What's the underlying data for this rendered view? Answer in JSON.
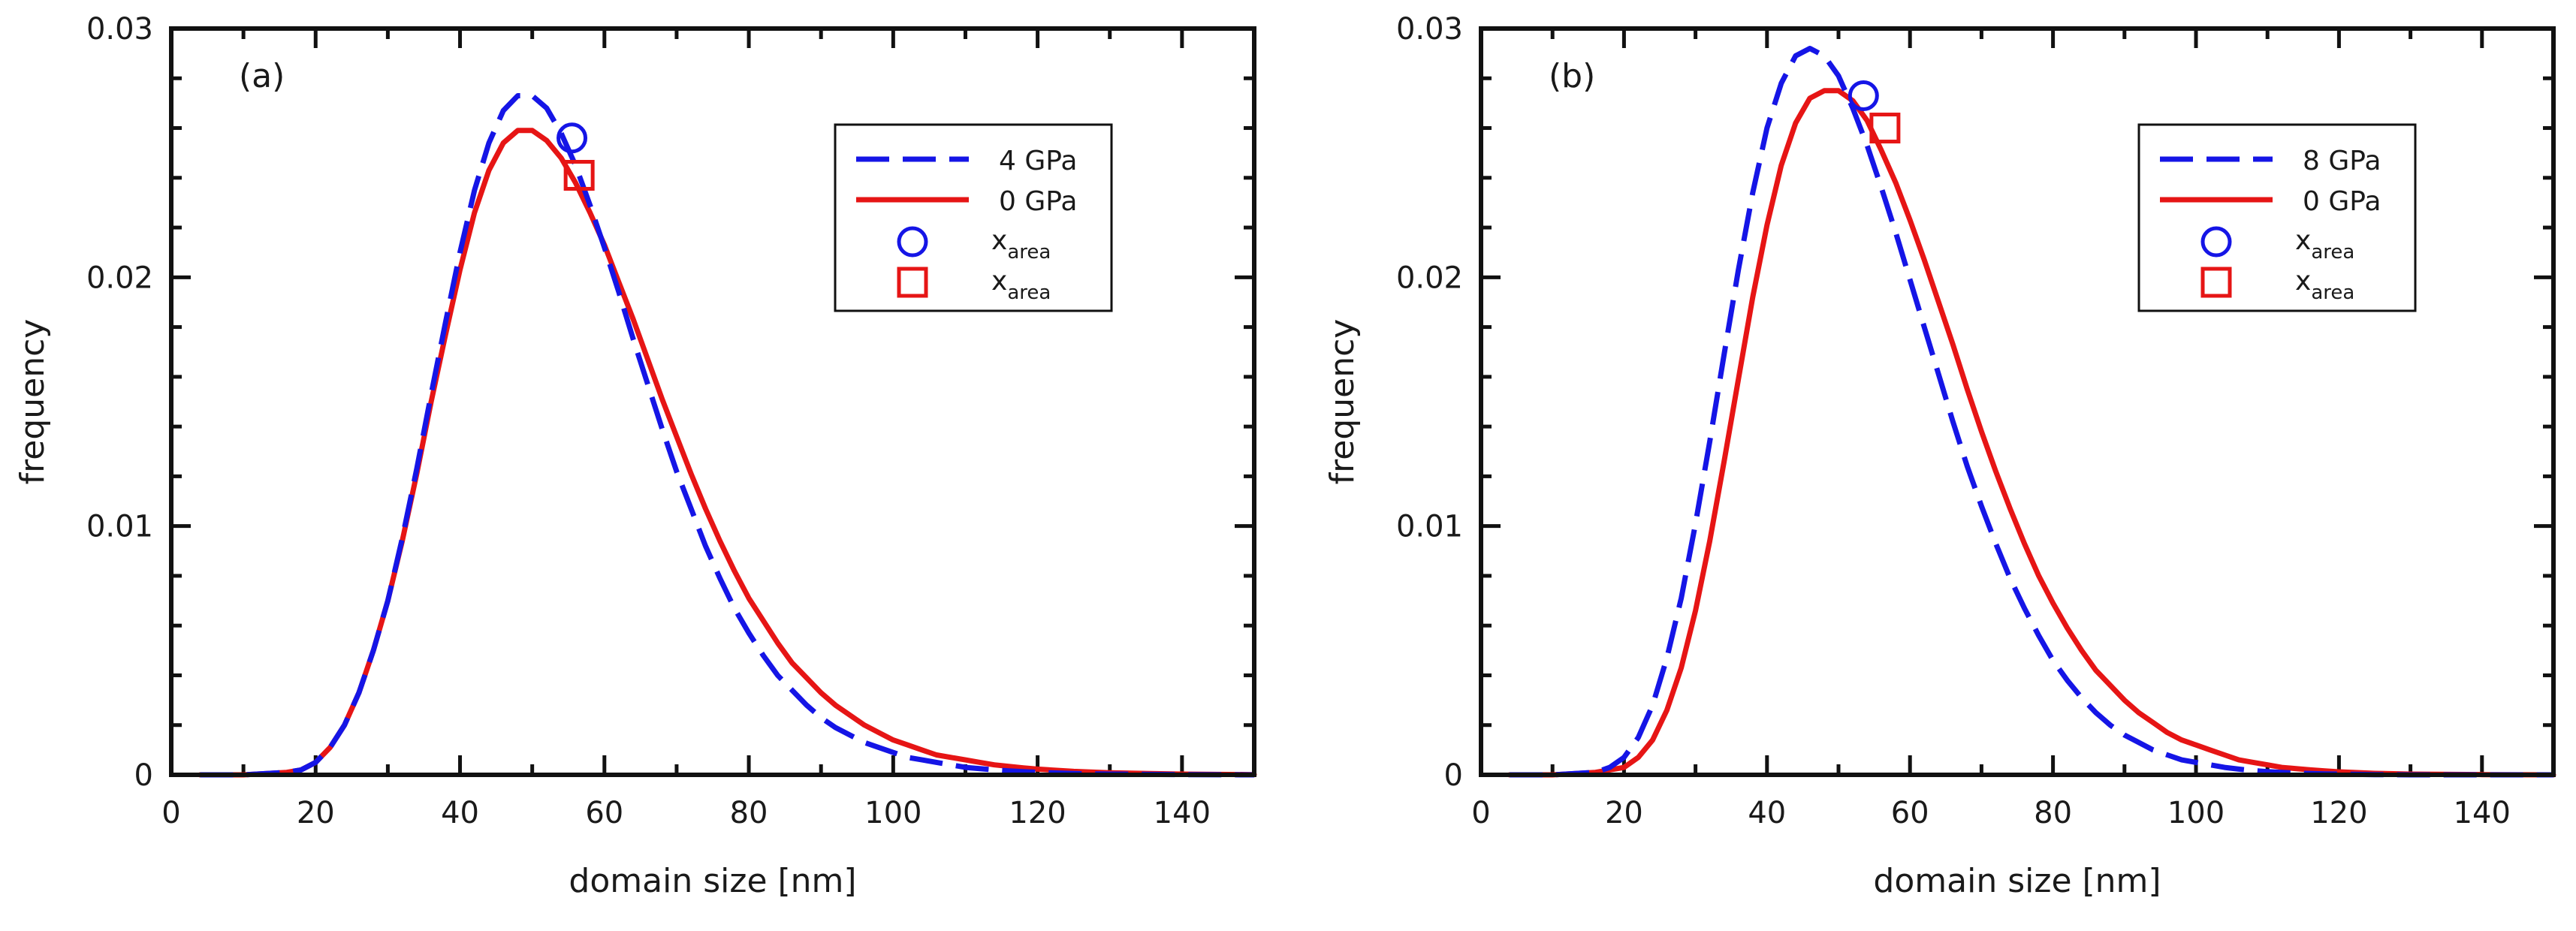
{
  "chart_data": [
    {
      "panel_label": "(a)",
      "type": "line",
      "xlabel": "domain size [nm]",
      "ylabel": "frequency",
      "xlim": [
        0,
        150
      ],
      "ylim": [
        0,
        0.03
      ],
      "xticks": [
        0,
        20,
        40,
        60,
        80,
        100,
        120,
        140
      ],
      "xtick_labels": [
        "0",
        "20",
        "40",
        "60",
        "80",
        "100",
        "120",
        "140"
      ],
      "yticks": [
        0,
        0.01,
        0.02,
        0.03
      ],
      "ytick_labels": [
        "0",
        "0.01",
        "0.02",
        "0.03"
      ],
      "legend_position": "top-right",
      "series": [
        {
          "name": "4 GPa",
          "color": "#1515e6",
          "style": "dashed",
          "x": [
            4,
            10,
            16,
            18,
            20,
            22,
            24,
            26,
            28,
            30,
            32,
            34,
            36,
            38,
            40,
            42,
            44,
            46,
            48,
            50,
            52,
            54,
            56,
            58,
            60,
            62,
            64,
            66,
            68,
            70,
            72,
            74,
            76,
            78,
            80,
            82,
            84,
            86,
            88,
            90,
            92,
            94,
            96,
            98,
            100,
            102,
            104,
            106,
            108,
            110,
            112,
            114,
            116,
            118,
            120,
            125,
            130,
            140,
            150
          ],
          "y": [
            0,
            0,
            0.0001,
            0.0002,
            0.0005,
            0.0011,
            0.002,
            0.0033,
            0.005,
            0.007,
            0.0095,
            0.0123,
            0.0153,
            0.0182,
            0.021,
            0.0235,
            0.0254,
            0.0267,
            0.0273,
            0.0273,
            0.0268,
            0.0258,
            0.0245,
            0.0229,
            0.0212,
            0.0194,
            0.0175,
            0.0157,
            0.0139,
            0.0122,
            0.0107,
            0.0092,
            0.0079,
            0.0067,
            0.0057,
            0.0048,
            0.004,
            0.0034,
            0.0028,
            0.0023,
            0.0019,
            0.0016,
            0.0013,
            0.0011,
            0.0009,
            0.0007,
            0.0006,
            0.0005,
            0.0004,
            0.0003,
            0.00025,
            0.0002,
            0.00016,
            0.00013,
            0.0001,
            5e-05,
            3e-05,
            1e-05,
            0
          ]
        },
        {
          "name": "0 GPa",
          "color": "#e61515",
          "style": "solid",
          "x": [
            4,
            10,
            16,
            18,
            20,
            22,
            24,
            26,
            28,
            30,
            32,
            34,
            36,
            38,
            40,
            42,
            44,
            46,
            48,
            50,
            52,
            54,
            56,
            58,
            60,
            62,
            64,
            66,
            68,
            70,
            72,
            74,
            76,
            78,
            80,
            82,
            84,
            86,
            88,
            90,
            92,
            94,
            96,
            98,
            100,
            102,
            104,
            106,
            108,
            110,
            112,
            114,
            116,
            118,
            120,
            125,
            130,
            140,
            150
          ],
          "y": [
            0,
            0,
            0.0001,
            0.0002,
            0.0005,
            0.0011,
            0.002,
            0.0033,
            0.005,
            0.007,
            0.0094,
            0.0121,
            0.015,
            0.0177,
            0.0203,
            0.0226,
            0.0243,
            0.0254,
            0.0259,
            0.0259,
            0.0255,
            0.0248,
            0.0238,
            0.0226,
            0.0213,
            0.0198,
            0.0183,
            0.0167,
            0.0151,
            0.0136,
            0.0121,
            0.0107,
            0.0094,
            0.0082,
            0.0071,
            0.0062,
            0.0053,
            0.0045,
            0.0039,
            0.0033,
            0.0028,
            0.0024,
            0.002,
            0.0017,
            0.0014,
            0.0012,
            0.001,
            0.0008,
            0.0007,
            0.0006,
            0.0005,
            0.0004,
            0.00034,
            0.00028,
            0.00023,
            0.00014,
            8e-05,
            3e-05,
            1e-05
          ]
        }
      ],
      "markers": [
        {
          "name": "x_area",
          "label_main": "x",
          "label_sub": "area",
          "shape": "circle",
          "color": "#1515e6",
          "x": 55.5,
          "y": 0.0256
        },
        {
          "name": "x_area",
          "label_main": "x",
          "label_sub": "area",
          "shape": "square",
          "color": "#e61515",
          "x": 56.5,
          "y": 0.0241
        }
      ]
    },
    {
      "panel_label": "(b)",
      "type": "line",
      "xlabel": "domain size [nm]",
      "ylabel": "frequency",
      "xlim": [
        0,
        150
      ],
      "ylim": [
        0,
        0.03
      ],
      "xticks": [
        0,
        20,
        40,
        60,
        80,
        100,
        120,
        140
      ],
      "xtick_labels": [
        "0",
        "20",
        "40",
        "60",
        "80",
        "100",
        "120",
        "140"
      ],
      "yticks": [
        0,
        0.01,
        0.02,
        0.03
      ],
      "ytick_labels": [
        "0",
        "0.01",
        "0.02",
        "0.03"
      ],
      "legend_position": "top-right",
      "series": [
        {
          "name": "8 GPa",
          "color": "#1515e6",
          "style": "dashed",
          "x": [
            4,
            10,
            16,
            18,
            20,
            22,
            24,
            26,
            28,
            30,
            32,
            34,
            36,
            38,
            40,
            42,
            44,
            46,
            48,
            50,
            52,
            54,
            56,
            58,
            60,
            62,
            64,
            66,
            68,
            70,
            72,
            74,
            76,
            78,
            80,
            82,
            84,
            86,
            88,
            90,
            92,
            94,
            96,
            98,
            100,
            102,
            104,
            106,
            108,
            110,
            112,
            114,
            116,
            118,
            120,
            125,
            130,
            140,
            150
          ],
          "y": [
            0,
            0,
            0.0001,
            0.0003,
            0.0007,
            0.0015,
            0.0028,
            0.0047,
            0.0071,
            0.0101,
            0.0134,
            0.0169,
            0.0203,
            0.0234,
            0.026,
            0.0278,
            0.0289,
            0.0292,
            0.0289,
            0.0281,
            0.0268,
            0.0253,
            0.0236,
            0.0218,
            0.0199,
            0.018,
            0.0161,
            0.0142,
            0.0124,
            0.0108,
            0.0093,
            0.0079,
            0.0067,
            0.0056,
            0.0046,
            0.0038,
            0.0031,
            0.0025,
            0.002,
            0.0016,
            0.0013,
            0.001,
            0.0008,
            0.0006,
            0.0005,
            0.0004,
            0.0003,
            0.00023,
            0.00017,
            0.00013,
            0.0001,
            7e-05,
            5e-05,
            4e-05,
            3e-05,
            1e-05,
            0,
            0,
            0
          ]
        },
        {
          "name": "0 GPa",
          "color": "#e61515",
          "style": "solid",
          "x": [
            4,
            10,
            16,
            18,
            20,
            22,
            24,
            26,
            28,
            30,
            32,
            34,
            36,
            38,
            40,
            42,
            44,
            46,
            48,
            50,
            52,
            54,
            56,
            58,
            60,
            62,
            64,
            66,
            68,
            70,
            72,
            74,
            76,
            78,
            80,
            82,
            84,
            86,
            88,
            90,
            92,
            94,
            96,
            98,
            100,
            102,
            104,
            106,
            108,
            110,
            112,
            114,
            116,
            118,
            120,
            125,
            130,
            140,
            150
          ],
          "y": [
            0,
            0,
            0.0001,
            0.0002,
            0.0003,
            0.0007,
            0.0014,
            0.0026,
            0.0043,
            0.0066,
            0.0094,
            0.0126,
            0.0159,
            0.0192,
            0.0221,
            0.0245,
            0.0262,
            0.0272,
            0.0275,
            0.0275,
            0.0271,
            0.0263,
            0.0251,
            0.0238,
            0.0223,
            0.0207,
            0.019,
            0.0173,
            0.0155,
            0.0138,
            0.0122,
            0.0107,
            0.0093,
            0.008,
            0.0069,
            0.0059,
            0.005,
            0.0042,
            0.0036,
            0.003,
            0.0025,
            0.0021,
            0.0017,
            0.0014,
            0.0012,
            0.001,
            0.0008,
            0.0006,
            0.0005,
            0.0004,
            0.0003,
            0.00025,
            0.0002,
            0.00016,
            0.00012,
            6e-05,
            3e-05,
            1e-05,
            0
          ]
        }
      ],
      "markers": [
        {
          "name": "x_area",
          "label_main": "x",
          "label_sub": "area",
          "shape": "circle",
          "color": "#1515e6",
          "x": 53.5,
          "y": 0.0273
        },
        {
          "name": "x_area",
          "label_main": "x",
          "label_sub": "area",
          "shape": "square",
          "color": "#e61515",
          "x": 56.5,
          "y": 0.026
        }
      ]
    }
  ]
}
